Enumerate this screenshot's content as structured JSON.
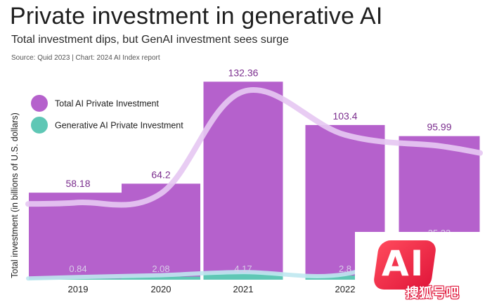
{
  "title": "Private investment in generative AI",
  "subtitle": "Total investment dips, but GenAI investment sees surge",
  "source": "Source: Quid 2023 | Chart: 2024 AI Index report",
  "colors": {
    "total": "#b561cc",
    "generative": "#5fc7b5",
    "trend_total": "#e6c8f2",
    "trend_generative": "#bfe8ef",
    "value_label": "#7b2e8e"
  },
  "watermark": {
    "badge": "AI",
    "text": "搜狐号吧"
  },
  "chart_data": {
    "type": "bar",
    "categories": [
      "2019",
      "2020",
      "2021",
      "2022",
      "2023"
    ],
    "ylabel": "Total investment (in billions of U.S. dollars)",
    "ylim": [
      0,
      140
    ],
    "grid": false,
    "legend_position": "top-left",
    "series": [
      {
        "name": "Total AI Private Investment",
        "values": [
          58.18,
          64.2,
          132.36,
          103.4,
          95.99
        ],
        "labels": [
          "58.18",
          "64.2",
          "132.36",
          "103.4",
          "95.99"
        ]
      },
      {
        "name": "Generative AI Private Investment",
        "values": [
          0.84,
          2.08,
          4.17,
          2.8,
          25.23
        ],
        "labels": [
          "0.84",
          "2.08",
          "4.17",
          "2.8",
          "25.23"
        ]
      }
    ]
  }
}
